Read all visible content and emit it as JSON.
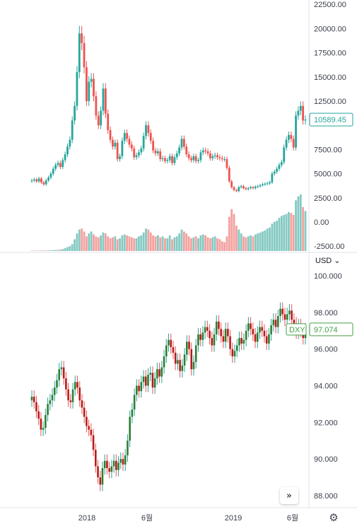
{
  "chart_data": [
    {
      "type": "candlestick",
      "ylim": [
        -2500,
        22500
      ],
      "y_ticks": [
        "22500.00",
        "20000.00",
        "17500.00",
        "15000.00",
        "12500.00",
        "10589.45",
        "7500.00",
        "5000.00",
        "2500.00",
        "0.00",
        "-2500.00"
      ],
      "last_price": "10589.45",
      "last_value": 10589.45,
      "colors": {
        "up": "#26a69a",
        "down": "#ef5350",
        "volume_up": "#84c9c2",
        "volume_down": "#f3a19f",
        "tag_bg": "#ffffff",
        "tag_border": "#26a69a"
      },
      "closes": [
        4300,
        4400,
        4200,
        4500,
        4100,
        3900,
        4300,
        4600,
        5000,
        5500,
        5900,
        6100,
        5700,
        6400,
        7000,
        7800,
        8500,
        10500,
        12000,
        15500,
        19500,
        18500,
        16000,
        12500,
        14500,
        14800,
        13000,
        11000,
        10000,
        11500,
        13800,
        11200,
        9500,
        8500,
        7800,
        8200,
        6500,
        6800,
        8400,
        9200,
        8600,
        8000,
        7600,
        6700,
        6900,
        7200,
        7600,
        8900,
        10000,
        9200,
        8400,
        7400,
        7100,
        7300,
        6500,
        6600,
        6300,
        6400,
        6800,
        6100,
        6700,
        7100,
        7700,
        8600,
        7800,
        7000,
        6600,
        6400,
        6800,
        6300,
        6400,
        7200,
        7400,
        7300,
        7100,
        6600,
        6800,
        6900,
        6700,
        6600,
        6500,
        6500,
        5600,
        4200,
        3600,
        3300,
        3200,
        3600,
        3700,
        3500,
        3400,
        3500,
        3600,
        3500,
        3650,
        3700,
        3800,
        3900,
        3950,
        4000,
        4100,
        5000,
        5200,
        5500,
        5900,
        6200,
        7700,
        8500,
        9000,
        8600,
        7700,
        11000,
        11500,
        12000,
        10500,
        10589.45
      ],
      "volume_up": [
        0,
        0,
        0,
        1,
        0,
        0,
        1,
        0,
        1,
        1,
        1,
        1,
        0,
        1,
        1,
        1,
        1,
        1,
        1,
        1,
        1,
        0,
        0,
        0,
        1,
        1,
        0,
        0,
        0,
        1,
        1,
        0,
        0,
        0,
        0,
        1,
        0,
        1,
        1,
        1,
        0,
        0,
        0,
        0,
        1,
        1,
        1,
        1,
        1,
        0,
        0,
        0,
        0,
        1,
        0,
        1,
        0,
        1,
        1,
        0,
        1,
        1,
        1,
        1,
        0,
        0,
        0,
        0,
        1,
        0,
        1,
        1,
        1,
        0,
        0,
        0,
        1,
        1,
        0,
        0,
        0,
        0,
        0,
        0,
        0,
        0,
        0,
        1,
        1,
        0,
        0,
        1,
        1,
        0,
        1,
        1,
        1,
        1,
        1,
        1,
        1,
        1,
        1,
        1,
        1,
        1,
        1,
        1,
        1,
        0,
        0,
        1,
        1,
        1,
        0,
        1
      ],
      "volumes": [
        40,
        45,
        40,
        50,
        60,
        55,
        55,
        70,
        80,
        90,
        100,
        120,
        150,
        200,
        300,
        400,
        500,
        700,
        1200,
        1800,
        2200,
        2300,
        2000,
        1500,
        1800,
        2000,
        1700,
        1500,
        1400,
        1600,
        1900,
        1800,
        1500,
        1300,
        1400,
        1500,
        1200,
        1300,
        1600,
        1700,
        1600,
        1500,
        1400,
        1300,
        1300,
        1500,
        1600,
        1900,
        2300,
        2200,
        1900,
        1600,
        1500,
        1600,
        1400,
        1500,
        1300,
        1300,
        1600,
        1200,
        1400,
        1500,
        1800,
        2200,
        2000,
        1800,
        1500,
        1300,
        1400,
        1500,
        1300,
        1600,
        1700,
        1600,
        1400,
        1300,
        1400,
        1500,
        1300,
        1200,
        1000,
        900,
        1500,
        3500,
        4300,
        3800,
        2600,
        2200,
        1800,
        1500,
        1400,
        1500,
        1600,
        1500,
        1700,
        1800,
        1900,
        2000,
        2100,
        2300,
        2400,
        2800,
        3000,
        3100,
        3400,
        3600,
        3700,
        3800,
        4000,
        3900,
        3700,
        5200,
        5600,
        5800,
        4500,
        4100
      ]
    },
    {
      "type": "candlestick",
      "ylim": [
        87.2,
        100.4
      ],
      "y_ticks": [
        "100.000",
        "98.000",
        "96.000",
        "94.000",
        "92.000",
        "90.000",
        "88.000"
      ],
      "series_label": "DXY",
      "last_price": "97.074",
      "last_value": 97.074,
      "currency": "USD",
      "colors": {
        "up": "#26a69a",
        "down": "#ef5350",
        "body_up": "#2e7d32",
        "body_down": "#b71c1c",
        "tag_bg": "#ffffff",
        "tag_border": "#43a047"
      },
      "closes": [
        93.4,
        93.1,
        92.6,
        92.2,
        91.6,
        91.7,
        92.4,
        93.0,
        93.2,
        93.5,
        93.9,
        94.3,
        94.9,
        95.0,
        94.4,
        93.8,
        93.2,
        93.1,
        93.8,
        94.2,
        93.9,
        93.2,
        92.8,
        92.3,
        91.8,
        91.6,
        91.3,
        90.5,
        89.6,
        89.0,
        88.6,
        89.5,
        89.9,
        89.5,
        89.3,
        89.6,
        89.9,
        89.4,
        89.8,
        90.0,
        89.7,
        90.2,
        91.0,
        92.3,
        92.7,
        93.5,
        94.0,
        93.7,
        94.2,
        94.5,
        94.0,
        94.6,
        94.7,
        93.9,
        94.4,
        94.9,
        94.5,
        95.0,
        95.6,
        96.2,
        96.5,
        96.1,
        95.8,
        95.2,
        95.4,
        94.8,
        95.1,
        95.7,
        96.4,
        96.0,
        94.9,
        95.3,
        96.2,
        96.8,
        96.5,
        96.9,
        97.2,
        97.0,
        96.6,
        96.2,
        96.8,
        97.5,
        97.1,
        96.7,
        96.4,
        97.1,
        96.7,
        96.0,
        95.6,
        95.9,
        96.2,
        96.6,
        96.3,
        96.5,
        97.0,
        97.4,
        97.1,
        96.8,
        96.4,
        96.9,
        97.2,
        97.0,
        96.7,
        96.3,
        96.8,
        97.3,
        97.6,
        97.2,
        97.8,
        98.2,
        97.9,
        97.6,
        97.9,
        98.1,
        97.6,
        97.4,
        96.9,
        97.3,
        97.0,
        96.6,
        97.074
      ]
    }
  ],
  "x_axis": {
    "labels": [
      "2018",
      "6월",
      "2019",
      "6월"
    ]
  },
  "controls": {
    "scroll_right": "»",
    "settings": "⚙"
  }
}
